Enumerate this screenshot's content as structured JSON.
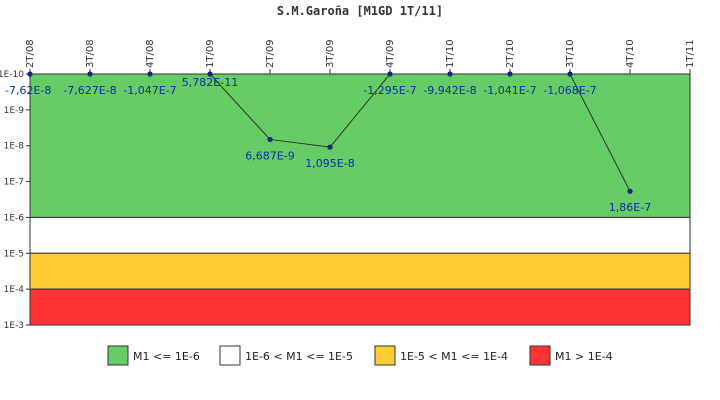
{
  "chart_data": {
    "type": "line",
    "title": "S.M.Garoña [M1GD 1T/11]",
    "categories": [
      "2T/08",
      "3T/08",
      "4T/08",
      "1T/09",
      "2T/09",
      "3T/09",
      "4T/09",
      "1T/10",
      "2T/10",
      "3T/10",
      "4T/10",
      "1T/11"
    ],
    "y_scale": "log",
    "y_ticks": [
      "1E-10",
      "1E-9",
      "1E-8",
      "1E-7",
      "1E-6",
      "1E-5",
      "1E-4",
      "1E-3"
    ],
    "y_axis_direction": "increasing downward",
    "ylim": [
      1e-10,
      0.001
    ],
    "grid": false,
    "bands": [
      {
        "label": "M1 <= 1E-6",
        "from": 1e-10,
        "to": 1e-06,
        "color": "#66cc66"
      },
      {
        "label": "1E-6 < M1 <= 1E-5",
        "from": 1e-06,
        "to": 1e-05,
        "color": "#ffffff"
      },
      {
        "label": "1E-5 < M1 <= 1E-4",
        "from": 1e-05,
        "to": 0.0001,
        "color": "#ffcc33"
      },
      {
        "label": "M1 > 1E-4",
        "from": 0.0001,
        "to": 0.001,
        "color": "#ff3333"
      }
    ],
    "legend_position": "bottom",
    "series": [
      {
        "color": "#1a237e",
        "points": [
          {
            "x": "2T/08",
            "y": 1e-10,
            "label": "-7,62E-8"
          },
          {
            "x": "3T/08",
            "y": 1e-10,
            "label": "-7,627E-8"
          },
          {
            "x": "4T/08",
            "y": 1e-10,
            "label": "-1,047E-7"
          },
          {
            "x": "1T/09",
            "y": 1e-10,
            "label": "5,782E-11"
          },
          {
            "x": "2T/09",
            "y": 6.687e-09,
            "label": "6,687E-9"
          },
          {
            "x": "3T/09",
            "y": 1.095e-08,
            "label": "1,095E-8"
          },
          {
            "x": "4T/09",
            "y": 1e-10,
            "label": "-1,295E-7"
          },
          {
            "x": "1T/10",
            "y": 1e-10,
            "label": "-9,942E-8"
          },
          {
            "x": "2T/10",
            "y": 1e-10,
            "label": "-1,041E-7"
          },
          {
            "x": "3T/10",
            "y": 1e-10,
            "label": "-1,068E-7"
          },
          {
            "x": "4T/10",
            "y": 1.86e-07,
            "label": "1,86E-7"
          }
        ]
      }
    ]
  }
}
